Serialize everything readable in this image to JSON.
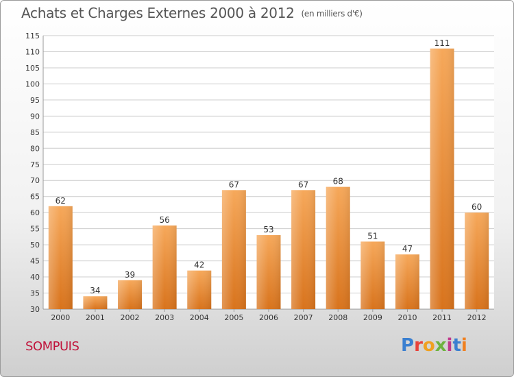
{
  "header": {
    "title": "Achats et Charges Externes 2000 à 2012",
    "unit": "(en milliers d'€)"
  },
  "footer": {
    "commune": "SOMPUIS",
    "logo": [
      "P",
      "r",
      "o",
      "x",
      "i",
      "t",
      "i"
    ]
  },
  "colors": {
    "bar_light": "#f6a85a",
    "bar_dark": "#d8731c",
    "axis_text": "#333333",
    "grid": "#cccccc",
    "title": "#555555",
    "commune": "#c0143c"
  },
  "chart_data": {
    "type": "bar",
    "title": "Achats et Charges Externes 2000 à 2012",
    "subtitle": "(en milliers d'€)",
    "xlabel": "",
    "ylabel": "",
    "ylim": [
      30,
      115
    ],
    "yticks": [
      30,
      35,
      40,
      45,
      50,
      55,
      60,
      65,
      70,
      75,
      80,
      85,
      90,
      95,
      100,
      105,
      110,
      115
    ],
    "grid": true,
    "categories": [
      "2000",
      "2001",
      "2002",
      "2003",
      "2004",
      "2005",
      "2006",
      "2007",
      "2008",
      "2009",
      "2010",
      "2011",
      "2012"
    ],
    "values": [
      62,
      34,
      39,
      56,
      42,
      67,
      53,
      67,
      68,
      51,
      47,
      111,
      60
    ]
  }
}
